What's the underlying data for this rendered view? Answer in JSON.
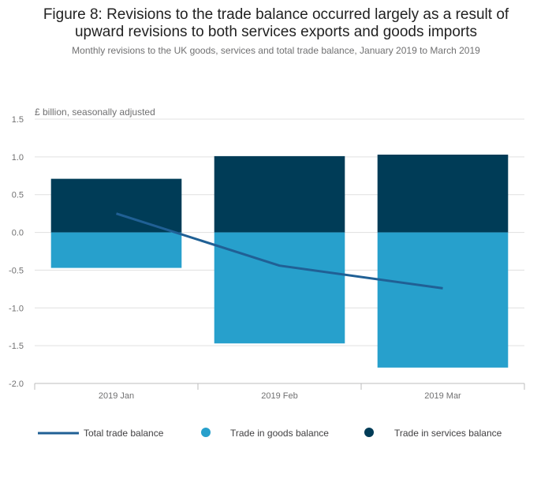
{
  "chart_data": {
    "type": "bar",
    "stacked": true,
    "title_line1": "Figure 8: Revisions to the trade balance occurred largely as a result of",
    "title_line2": "upward revisions to both services exports and goods imports",
    "subtitle": "Monthly revisions to the UK goods, services and total trade balance, January 2019 to March 2019",
    "ylabel": "£ billion, seasonally adjusted",
    "xlabel": "",
    "ylim": [
      -2.0,
      1.5
    ],
    "yticks": [
      1.5,
      1.0,
      0.5,
      0.0,
      -0.5,
      -1.0,
      -1.5,
      -2.0
    ],
    "ytick_labels": [
      "1.5",
      "1.0",
      "0.5",
      "0.0",
      "-0.5",
      "-1.0",
      "-1.5",
      "-2.0"
    ],
    "categories": [
      "2019 Jan",
      "2019 Feb",
      "2019 Mar"
    ],
    "series": [
      {
        "name": "Trade in goods balance",
        "type": "bar",
        "color": "#27a0cc",
        "values": [
          -0.47,
          -1.47,
          -1.79
        ]
      },
      {
        "name": "Trade in services balance",
        "type": "bar",
        "color": "#003c57",
        "values": [
          0.71,
          1.01,
          1.03
        ]
      },
      {
        "name": "Total trade balance",
        "type": "line",
        "color": "#206095",
        "values": [
          0.25,
          -0.44,
          -0.74
        ]
      }
    ],
    "legend": {
      "position": "bottom",
      "items": [
        "Total trade balance",
        "Trade in goods balance",
        "Trade in services balance"
      ]
    },
    "grid": true
  }
}
